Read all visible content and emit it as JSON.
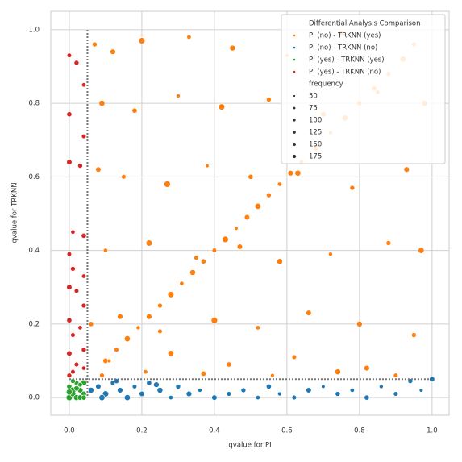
{
  "chart_data": {
    "type": "scatter",
    "xlabel": "qvalue for PI",
    "ylabel": "qvalue for TRKNN",
    "xlim": [
      -0.051,
      1.047
    ],
    "ylim": [
      -0.048,
      1.05
    ],
    "xticks": [
      {
        "value": 0,
        "label": "0.0"
      },
      0.2,
      0.4,
      0.6,
      0.8,
      {
        "value": 1,
        "label": "1.0"
      }
    ],
    "yticks": [
      {
        "value": 0,
        "label": "0.0"
      },
      0.2,
      0.4,
      0.6,
      0.8,
      {
        "value": 1,
        "label": "1.0"
      }
    ],
    "grid": true,
    "vlines": [
      0.05
    ],
    "hlines": [
      0.05
    ],
    "legend_title": "Differential Analysis Comparison",
    "legend_position": "upper right",
    "size_legend": {
      "title": "frequency",
      "values": [
        50,
        75,
        100,
        125,
        150,
        175
      ]
    },
    "series": [
      {
        "name": "PI (no)  - TRKNN (yes)",
        "color": "#ff7f0e",
        "x": [
          0.1,
          0.13,
          0.16,
          0.19,
          0.22,
          0.25,
          0.28,
          0.31,
          0.34,
          0.37,
          0.4,
          0.43,
          0.46,
          0.49,
          0.52,
          0.55,
          0.58,
          0.61,
          0.64,
          0.68,
          0.72,
          0.76,
          0.8,
          0.84,
          0.88,
          0.92,
          0.07,
          0.12,
          0.2,
          0.33,
          0.45,
          0.6,
          0.75,
          0.95,
          0.09,
          0.18,
          0.3,
          0.42,
          0.55,
          0.7,
          0.85,
          0.98,
          0.08,
          0.15,
          0.27,
          0.38,
          0.5,
          0.63,
          0.78,
          0.93,
          0.1,
          0.22,
          0.35,
          0.47,
          0.58,
          0.72,
          0.88,
          0.97,
          0.06,
          0.14,
          0.25,
          0.4,
          0.52,
          0.66,
          0.8,
          0.95,
          0.11,
          0.28,
          0.44,
          0.62,
          0.82,
          0.09,
          0.21,
          0.37,
          0.56,
          0.74,
          0.9
        ],
        "values": [
          0.1,
          0.13,
          0.16,
          0.19,
          0.22,
          0.25,
          0.28,
          0.31,
          0.34,
          0.37,
          0.4,
          0.43,
          0.46,
          0.49,
          0.52,
          0.55,
          0.58,
          0.61,
          0.64,
          0.68,
          0.72,
          0.76,
          0.8,
          0.84,
          0.88,
          0.92,
          0.96,
          0.94,
          0.97,
          0.98,
          0.95,
          0.93,
          0.99,
          0.96,
          0.8,
          0.78,
          0.82,
          0.79,
          0.81,
          0.77,
          0.83,
          0.8,
          0.62,
          0.6,
          0.58,
          0.63,
          0.6,
          0.61,
          0.57,
          0.62,
          0.4,
          0.42,
          0.38,
          0.41,
          0.37,
          0.39,
          0.42,
          0.4,
          0.2,
          0.22,
          0.18,
          0.21,
          0.19,
          0.23,
          0.2,
          0.17,
          0.1,
          0.12,
          0.09,
          0.11,
          0.08,
          0.06,
          0.07,
          0.065,
          0.06,
          0.07,
          0.06
        ],
        "sizes": [
          120,
          90,
          150,
          70,
          130,
          100,
          160,
          80,
          140,
          110,
          90,
          170,
          60,
          120,
          150,
          100,
          80,
          130,
          90,
          160,
          70,
          140,
          110,
          120,
          90,
          150,
          100,
          130,
          170,
          80,
          140,
          60,
          120,
          90,
          150,
          110,
          70,
          160,
          100,
          130,
          80,
          140,
          120,
          90,
          170,
          60,
          110,
          150,
          100,
          130,
          80,
          160,
          90,
          120,
          140,
          70,
          100,
          150,
          110,
          130,
          90,
          170,
          80,
          120,
          140,
          100,
          60,
          150,
          110,
          90,
          130,
          100,
          80,
          120,
          70,
          140,
          90
        ]
      },
      {
        "name": "PI (no)  - TRKNN (no)",
        "color": "#1f77b4",
        "x": [
          0.06,
          0.08,
          0.1,
          0.12,
          0.14,
          0.16,
          0.18,
          0.2,
          0.22,
          0.25,
          0.28,
          0.3,
          0.33,
          0.36,
          0.4,
          0.44,
          0.48,
          0.52,
          0.55,
          0.58,
          0.62,
          0.66,
          0.7,
          0.74,
          0.78,
          0.82,
          0.86,
          0.9,
          0.94,
          0.97,
          1.0,
          0.09,
          0.13,
          0.24
        ],
        "values": [
          0.02,
          0.03,
          0.01,
          0.04,
          0.02,
          0.0,
          0.03,
          0.01,
          0.04,
          0.02,
          0.0,
          0.03,
          0.01,
          0.02,
          0.0,
          0.01,
          0.02,
          0.0,
          0.03,
          0.01,
          0.0,
          0.02,
          0.03,
          0.01,
          0.02,
          0.0,
          0.03,
          0.01,
          0.045,
          0.02,
          0.05,
          0.0,
          0.045,
          0.035
        ],
        "sizes": [
          140,
          120,
          160,
          100,
          130,
          150,
          90,
          120,
          110,
          140,
          80,
          100,
          130,
          70,
          120,
          90,
          100,
          80,
          110,
          70,
          90,
          120,
          60,
          100,
          80,
          110,
          70,
          90,
          100,
          60,
          120,
          150,
          110,
          130
        ]
      },
      {
        "name": "PI (yes) - TRKNN (yes)",
        "color": "#2ca02c",
        "x": [
          0.0,
          0.01,
          0.02,
          0.03,
          0.04,
          0.0,
          0.02,
          0.04,
          0.01,
          0.03,
          0.0,
          0.02,
          0.04,
          0.01,
          0.03
        ],
        "values": [
          0.0,
          0.01,
          0.0,
          0.02,
          0.01,
          0.03,
          0.04,
          0.04,
          0.02,
          0.0,
          0.015,
          0.025,
          0.0,
          0.045,
          0.035
        ],
        "sizes": [
          160,
          140,
          150,
          130,
          120,
          110,
          100,
          140,
          170,
          130,
          150,
          120,
          110,
          100,
          90
        ]
      },
      {
        "name": "PI (yes) - TRKNN (no)",
        "color": "#d62728",
        "x": [
          0.0,
          0.02,
          0.04,
          0.0,
          0.04,
          0.0,
          0.03,
          0.01,
          0.04,
          0.0,
          0.01,
          0.04,
          0.0,
          0.02,
          0.04,
          0.0,
          0.03,
          0.01,
          0.04,
          0.0,
          0.02,
          0.04,
          0.0,
          0.01
        ],
        "values": [
          0.93,
          0.91,
          0.85,
          0.77,
          0.71,
          0.64,
          0.63,
          0.45,
          0.44,
          0.39,
          0.35,
          0.33,
          0.3,
          0.29,
          0.25,
          0.21,
          0.19,
          0.17,
          0.13,
          0.12,
          0.09,
          0.08,
          0.06,
          0.07
        ],
        "sizes": [
          90,
          100,
          80,
          110,
          90,
          120,
          100,
          80,
          110,
          90,
          100,
          80,
          120,
          90,
          100,
          110,
          80,
          90,
          100,
          120,
          90,
          80,
          100,
          90
        ]
      }
    ]
  }
}
